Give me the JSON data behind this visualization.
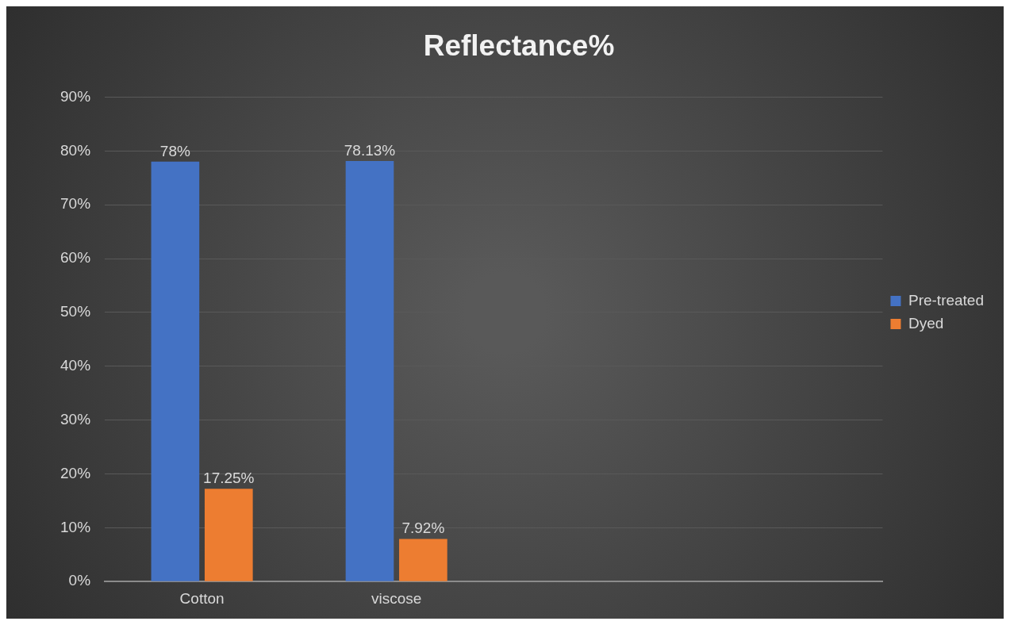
{
  "chart_data": {
    "type": "bar",
    "title": "Reflectance%",
    "categories": [
      "Cotton",
      "viscose",
      null,
      null
    ],
    "series": [
      {
        "name": "Pre-treated",
        "color": "#4472c4",
        "values": [
          78,
          78.13,
          null,
          null
        ],
        "value_labels": [
          "78%",
          "78.13%",
          null,
          null
        ]
      },
      {
        "name": "Dyed",
        "color": "#ed7d31",
        "values": [
          17.25,
          7.92,
          null,
          null
        ],
        "value_labels": [
          "17.25%",
          "7.92%",
          null,
          null
        ]
      }
    ],
    "ylim": [
      0,
      90
    ],
    "yticks": [
      {
        "value": 0,
        "label": "0%"
      },
      {
        "value": 10,
        "label": "10%"
      },
      {
        "value": 20,
        "label": "20%"
      },
      {
        "value": 30,
        "label": "30%"
      },
      {
        "value": 40,
        "label": "40%"
      },
      {
        "value": 50,
        "label": "50%"
      },
      {
        "value": 60,
        "label": "60%"
      },
      {
        "value": 70,
        "label": "70%"
      },
      {
        "value": 80,
        "label": "80%"
      },
      {
        "value": 90,
        "label": "90%"
      }
    ],
    "grid": "y",
    "legend": "right"
  }
}
